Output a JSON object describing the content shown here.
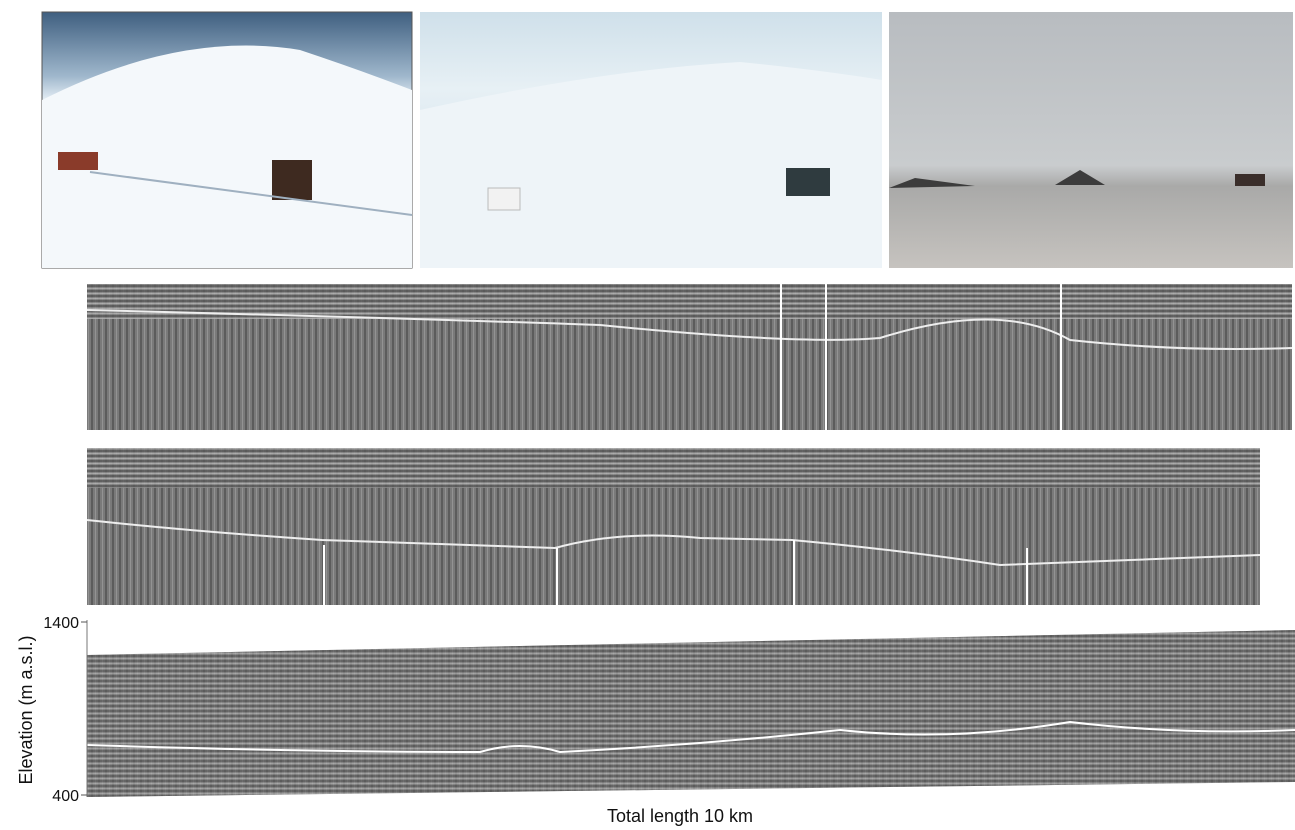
{
  "radar_profile": {
    "yticks": [
      1400,
      400
    ],
    "y_label": "Elevation (m a.s.l.)",
    "x_label": "Total length 10 km"
  }
}
